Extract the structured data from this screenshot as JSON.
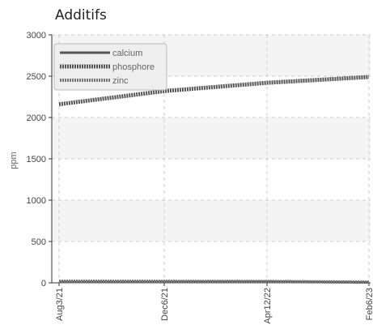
{
  "chart_data": {
    "type": "line",
    "title": "Additifs",
    "xlabel": "",
    "ylabel": "ppm",
    "ylim": [
      0,
      3000
    ],
    "y_ticks": [
      "0",
      "500",
      "1000",
      "1500",
      "2000",
      "2500",
      "3000"
    ],
    "x_ticks": [
      "Aug3/21",
      "Dec6/21",
      "Apr12/22",
      "Feb6/23"
    ],
    "x": [
      "Aug3/21",
      "Dec6/21",
      "Apr12/22",
      "Feb6/23"
    ],
    "grid": true,
    "legend_position": "top-left",
    "series": [
      {
        "name": "calcium",
        "values": [
          10,
          12,
          15,
          5
        ],
        "color": "#555555",
        "style": "solid"
      },
      {
        "name": "phosphore",
        "values": [
          2160,
          2320,
          2420,
          2490
        ],
        "color": "#555555",
        "style": "dotted"
      },
      {
        "name": "zinc",
        "values": [
          20,
          18,
          16,
          8
        ],
        "color": "#777777",
        "style": "dotted"
      }
    ]
  }
}
